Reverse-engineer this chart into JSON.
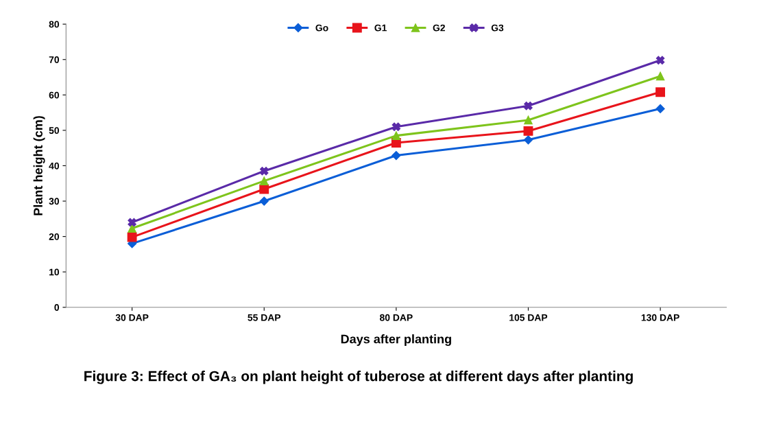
{
  "chart_data": {
    "type": "line",
    "xlabel": "Days after planting",
    "ylabel": "Plant height (cm)",
    "categories": [
      "30 DAP",
      "55 DAP",
      "80 DAP",
      "105 DAP",
      "130 DAP"
    ],
    "series": [
      {
        "name": "Go",
        "color": "#0b5ed7",
        "marker": "diamond",
        "values": [
          18.0,
          30.0,
          42.9,
          47.3,
          56.1
        ]
      },
      {
        "name": "G1",
        "color": "#e8141b",
        "marker": "square",
        "values": [
          19.8,
          33.4,
          46.5,
          49.8,
          60.8
        ]
      },
      {
        "name": "G2",
        "color": "#7ec41c",
        "marker": "triangle",
        "values": [
          22.3,
          35.7,
          48.5,
          52.9,
          65.3
        ]
      },
      {
        "name": "G3",
        "color": "#5a2aa8",
        "marker": "cross",
        "values": [
          24.0,
          38.5,
          51.0,
          56.9,
          69.8
        ]
      }
    ],
    "ylim": [
      0,
      80
    ],
    "yticks": [
      0,
      10,
      20,
      30,
      40,
      50,
      60,
      70,
      80
    ],
    "grid": false,
    "legend": "top",
    "annotations": [
      "Figure 3: Effect of GA₃ on plant height of tuberose at different days after planting"
    ]
  }
}
